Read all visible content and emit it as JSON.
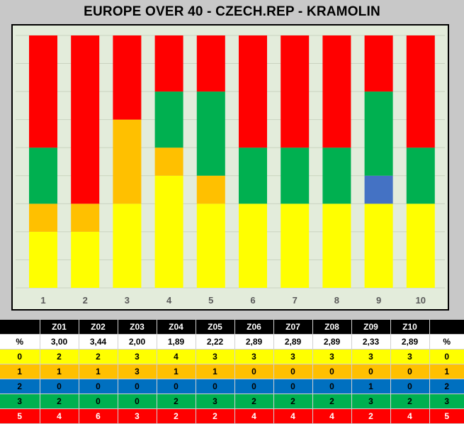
{
  "colors": {
    "0": "#ffff00",
    "1": "#ffc000",
    "2": "#4472c4",
    "3": "#00b050",
    "5": "#ff0000"
  },
  "chart_data": {
    "type": "bar",
    "stacked": true,
    "title": "EUROPE OVER 40 - CZECH.REP  - KRAMOLIN",
    "categories": [
      "1",
      "2",
      "3",
      "4",
      "5",
      "6",
      "7",
      "8",
      "9",
      "10"
    ],
    "series": [
      {
        "name": "0",
        "color": "#ffff00",
        "values": [
          2,
          2,
          3,
          4,
          3,
          3,
          3,
          3,
          3,
          3
        ]
      },
      {
        "name": "1",
        "color": "#ffc000",
        "values": [
          1,
          1,
          3,
          1,
          1,
          0,
          0,
          0,
          0,
          0
        ]
      },
      {
        "name": "2",
        "color": "#4472c4",
        "values": [
          0,
          0,
          0,
          0,
          0,
          0,
          0,
          0,
          1,
          0
        ]
      },
      {
        "name": "3",
        "color": "#00b050",
        "values": [
          2,
          0,
          0,
          2,
          3,
          2,
          2,
          2,
          3,
          2
        ]
      },
      {
        "name": "5",
        "color": "#ff0000",
        "values": [
          4,
          6,
          3,
          2,
          2,
          4,
          4,
          4,
          2,
          4
        ]
      }
    ],
    "ylim": [
      0,
      9
    ],
    "grid": true,
    "legend": "none"
  },
  "table": {
    "header": [
      "",
      "Z01",
      "Z02",
      "Z03",
      "Z04",
      "Z05",
      "Z06",
      "Z07",
      "Z08",
      "Z09",
      "Z10",
      ""
    ],
    "averages": [
      "%",
      "3,00",
      "3,44",
      "2,00",
      "1,89",
      "2,22",
      "2,89",
      "2,89",
      "2,89",
      "2,33",
      "2,89",
      "%"
    ],
    "rows": [
      {
        "key": "yellow",
        "cells": [
          "0",
          "2",
          "2",
          "3",
          "4",
          "3",
          "3",
          "3",
          "3",
          "3",
          "3",
          "0"
        ]
      },
      {
        "key": "orange",
        "cells": [
          "1",
          "1",
          "1",
          "3",
          "1",
          "1",
          "0",
          "0",
          "0",
          "0",
          "0",
          "1"
        ]
      },
      {
        "key": "blue",
        "cells": [
          "2",
          "0",
          "0",
          "0",
          "0",
          "0",
          "0",
          "0",
          "0",
          "1",
          "0",
          "2"
        ]
      },
      {
        "key": "green",
        "cells": [
          "3",
          "2",
          "0",
          "0",
          "2",
          "3",
          "2",
          "2",
          "2",
          "3",
          "2",
          "3"
        ]
      },
      {
        "key": "red",
        "cells": [
          "5",
          "4",
          "6",
          "3",
          "2",
          "2",
          "4",
          "4",
          "4",
          "2",
          "4",
          "5"
        ]
      }
    ]
  }
}
